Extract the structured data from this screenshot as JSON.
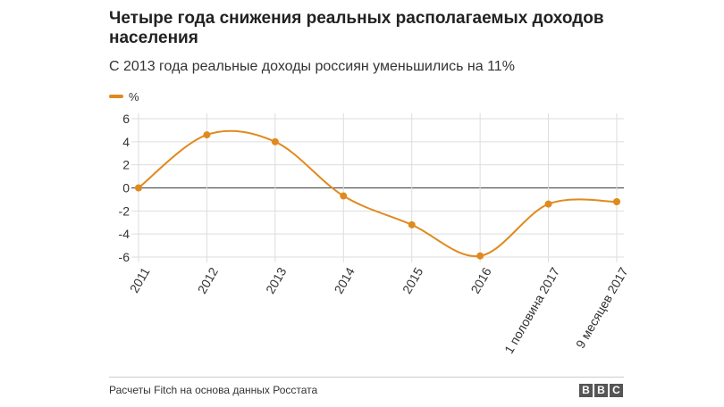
{
  "chart_data": {
    "type": "line",
    "title": "Четыре года снижения реальных располагаемых доходов населения",
    "subtitle": "С 2013 года реальные доходы россиян уменьшились на 11%",
    "categories": [
      "2011",
      "2012",
      "2013",
      "2014",
      "2015",
      "2016",
      "1 половина 2017",
      "9 месяцев 2017"
    ],
    "series": [
      {
        "name": "%",
        "values": [
          0,
          4.6,
          4.0,
          -0.7,
          -3.2,
          -5.9,
          -1.4,
          -1.2
        ]
      }
    ],
    "xlabel": "",
    "ylabel": "",
    "ylim": [
      -6,
      6
    ],
    "yticks": [
      "6",
      "4",
      "2",
      "0",
      "-2",
      "-4",
      "-6"
    ],
    "grid": true,
    "legend": "top-left",
    "line_color": "#e08a1e",
    "source": "Расчеты Fitch на основа данных Росстата",
    "logo_letters": [
      "B",
      "B",
      "C"
    ]
  }
}
